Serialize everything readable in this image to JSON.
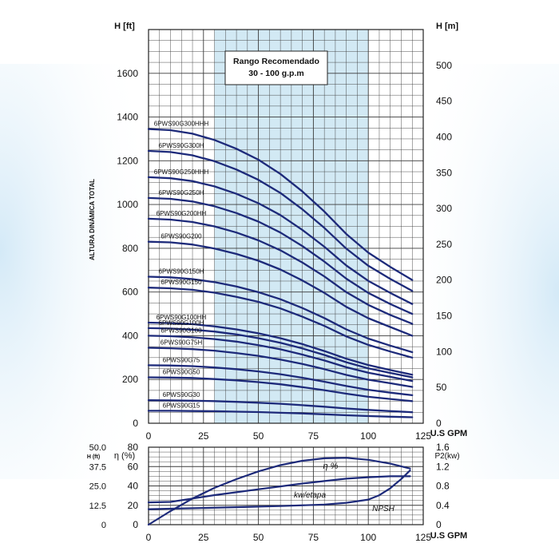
{
  "colors": {
    "curve": "#1d2a7a",
    "grid": "#3a3a3a",
    "band": "#d2e9f4",
    "axis_text": "#111111",
    "background_glow": "#dff0fa"
  },
  "chart_data": [
    {
      "type": "line",
      "title": "",
      "xlabel": "U.S GPM",
      "ylabel": "ALTURA DINÁMICA TOTAL",
      "y_unit_left": "H [ft]",
      "y_unit_right": "H [m]",
      "xlim": [
        0,
        125
      ],
      "ylim": [
        0,
        1800
      ],
      "ylim_right": [
        0,
        550
      ],
      "x_ticks": [
        "0",
        "25",
        "50",
        "75",
        "100",
        "125"
      ],
      "y_ticks_left": [
        "0",
        "200",
        "400",
        "600",
        "800",
        "1000",
        "1200",
        "1400",
        "1600"
      ],
      "y_ticks_right": [
        "0",
        "50",
        "100",
        "150",
        "200",
        "250",
        "300",
        "350",
        "400",
        "450",
        "500"
      ],
      "grid": true,
      "recommended_range": {
        "label_line1": "Rango Recomendado",
        "label_line2": "30 - 100 g.p.m",
        "x_from": 30,
        "x_to": 100
      },
      "x": [
        0,
        10,
        20,
        30,
        40,
        50,
        60,
        70,
        80,
        90,
        100,
        110,
        120
      ],
      "series": [
        {
          "name": "6PWS90G300HHH",
          "values": [
            1345,
            1340,
            1324,
            1295,
            1255,
            1205,
            1140,
            1060,
            968,
            865,
            780,
            715,
            655
          ]
        },
        {
          "name": "6PWS90G300H",
          "values": [
            1245,
            1240,
            1225,
            1198,
            1160,
            1113,
            1053,
            978,
            893,
            798,
            720,
            660,
            605
          ]
        },
        {
          "name": "6PWS90G250HHH",
          "values": [
            1125,
            1120,
            1107,
            1083,
            1049,
            1006,
            952,
            884,
            807,
            721,
            651,
            596,
            545
          ]
        },
        {
          "name": "6PWS90G250H",
          "values": [
            1030,
            1026,
            1014,
            992,
            961,
            922,
            872,
            810,
            739,
            661,
            596,
            545,
            500
          ]
        },
        {
          "name": "6PWS90G200HH",
          "values": [
            935,
            931,
            920,
            900,
            872,
            836,
            791,
            735,
            671,
            599,
            541,
            495,
            455
          ]
        },
        {
          "name": "6PWS90G200",
          "values": [
            830,
            827,
            817,
            799,
            774,
            743,
            703,
            653,
            596,
            532,
            480,
            440,
            400
          ]
        },
        {
          "name": "6PWS90G150H",
          "values": [
            670,
            667,
            659,
            645,
            625,
            599,
            567,
            527,
            481,
            429,
            387,
            355,
            325
          ]
        },
        {
          "name": "6PWS90G150",
          "values": [
            620,
            617,
            610,
            597,
            578,
            555,
            525,
            487,
            445,
            397,
            358,
            328,
            300
          ]
        },
        {
          "name": "6PWS90G100HH",
          "values": [
            460,
            458,
            453,
            443,
            429,
            411,
            389,
            362,
            330,
            295,
            266,
            243,
            222
          ]
        },
        {
          "name": "6PWS90G100H",
          "values": [
            435,
            433,
            428,
            419,
            406,
            389,
            368,
            342,
            312,
            279,
            251,
            230,
            210
          ]
        },
        {
          "name": "6PWS90G100",
          "values": [
            400,
            398,
            393,
            385,
            373,
            357,
            338,
            314,
            287,
            256,
            231,
            212,
            193
          ]
        },
        {
          "name": "6PWS90G75H",
          "values": [
            345,
            343,
            339,
            332,
            321,
            308,
            291,
            271,
            247,
            221,
            199,
            183,
            166
          ]
        },
        {
          "name": "6PWS90G75",
          "values": [
            265,
            264,
            261,
            255,
            247,
            237,
            224,
            208,
            190,
            170,
            153,
            140,
            128
          ]
        },
        {
          "name": "6PWS90G50",
          "values": [
            210,
            209,
            207,
            202,
            196,
            188,
            178,
            165,
            151,
            135,
            121,
            111,
            101
          ]
        },
        {
          "name": "6PWS90G30",
          "values": [
            105,
            104.5,
            103,
            101,
            98,
            94,
            89,
            82.5,
            75.5,
            67.5,
            61,
            55.5,
            50.5
          ]
        },
        {
          "name": "6PWS90G15",
          "values": [
            57,
            57,
            56,
            55,
            53,
            51,
            48,
            45,
            41,
            36.5,
            33,
            30,
            27.5
          ]
        }
      ]
    },
    {
      "type": "line",
      "title": "",
      "xlabel": "U.S GPM",
      "y_unit_eta": "η (%)",
      "y_unit_npsh": "H (ft)",
      "y_unit_power": "P2(kw)",
      "xlim": [
        0,
        125
      ],
      "ylim_eta": [
        0,
        80
      ],
      "ylim_npsh": [
        0,
        50
      ],
      "ylim_power": [
        0,
        1.6
      ],
      "x_ticks": [
        "0",
        "25",
        "50",
        "75",
        "100",
        "125"
      ],
      "eta_ticks": [
        "0",
        "20",
        "40",
        "60",
        "80"
      ],
      "npsh_ticks": [
        "0",
        "12.5",
        "25.0",
        "37.5",
        "50.0"
      ],
      "power_ticks": [
        "0",
        "0.4",
        "0.8",
        "1.2",
        "1.6"
      ],
      "grid": true,
      "series": [
        {
          "name": "η %",
          "x": [
            0,
            10,
            20,
            30,
            40,
            50,
            60,
            70,
            80,
            90,
            100,
            110,
            119
          ],
          "values": [
            0,
            14,
            27,
            38,
            47,
            55,
            61.5,
            66,
            68.5,
            69,
            67,
            63,
            58
          ]
        },
        {
          "name": "kw/etapa",
          "x": [
            0,
            10,
            20,
            30,
            40,
            50,
            60,
            70,
            80,
            90,
            100,
            110,
            119
          ],
          "values": [
            0.46,
            0.47,
            0.54,
            0.61,
            0.67,
            0.73,
            0.79,
            0.85,
            0.9,
            0.95,
            0.98,
            1.0,
            1.0
          ]
        },
        {
          "name": "NPSH",
          "x": [
            0,
            20,
            40,
            60,
            80,
            90,
            100,
            105,
            110,
            115,
            119
          ],
          "values": [
            10,
            10.6,
            11.3,
            12,
            13,
            14.1,
            16.2,
            19,
            23.5,
            29.5,
            35
          ]
        }
      ]
    }
  ]
}
